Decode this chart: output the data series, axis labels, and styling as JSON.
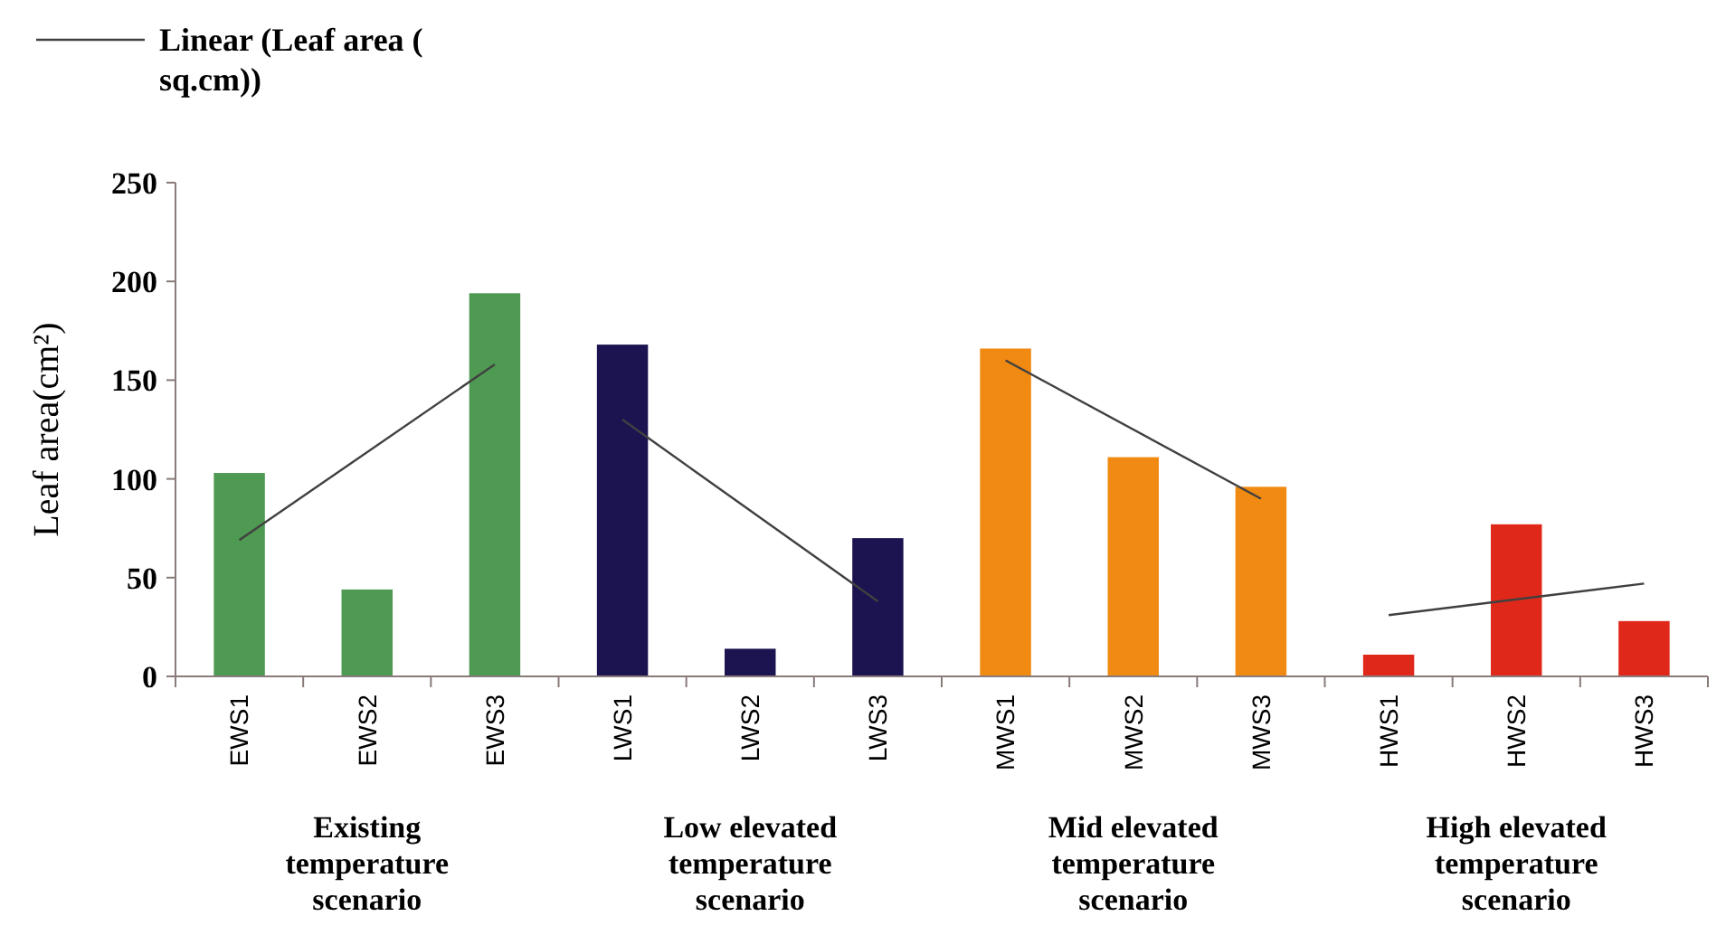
{
  "chart_data": {
    "type": "bar",
    "ylabel": "Leaf area(cm²)",
    "categories": [
      "EWS1",
      "EWS2",
      "EWS3",
      "LWS1",
      "LWS2",
      "LWS3",
      "MWS1",
      "MWS2",
      "MWS3",
      "HWS1",
      "HWS2",
      "HWS3"
    ],
    "series": [
      {
        "values": [
          103,
          44,
          194,
          168,
          14,
          70,
          166,
          111,
          96,
          11,
          77,
          28
        ],
        "colors": [
          "#4f9a52",
          "#4f9a52",
          "#4f9a52",
          "#1c1450",
          "#1c1450",
          "#1c1450",
          "#f08a12",
          "#f08a12",
          "#f08a12",
          "#e0281a",
          "#e0281a",
          "#e0281a"
        ]
      },
      {
        "type": "line",
        "name": "Linear (Leaf area ( sq.cm))",
        "color": "#404040",
        "x": [
          "EWS1",
          "EWS3"
        ],
        "values": [
          69,
          158
        ]
      },
      {
        "type": "line",
        "color": "#404040",
        "x": [
          "LWS1",
          "LWS3"
        ],
        "values": [
          130,
          38
        ]
      },
      {
        "type": "line",
        "color": "#404040",
        "x": [
          "MWS1",
          "MWS3"
        ],
        "values": [
          160,
          90
        ]
      },
      {
        "type": "line",
        "color": "#404040",
        "x": [
          "HWS1",
          "HWS3"
        ],
        "values": [
          31,
          47
        ]
      }
    ],
    "ylim": [
      0,
      250
    ],
    "yticks": [
      0,
      50,
      100,
      150,
      200,
      250
    ],
    "grid": false,
    "legend": "top left",
    "annotations": [
      "Existing temperature scenario",
      "Low elevated temperature scenario",
      "Mid elevated temperature scenario",
      "High elevated temperature scenario"
    ]
  }
}
